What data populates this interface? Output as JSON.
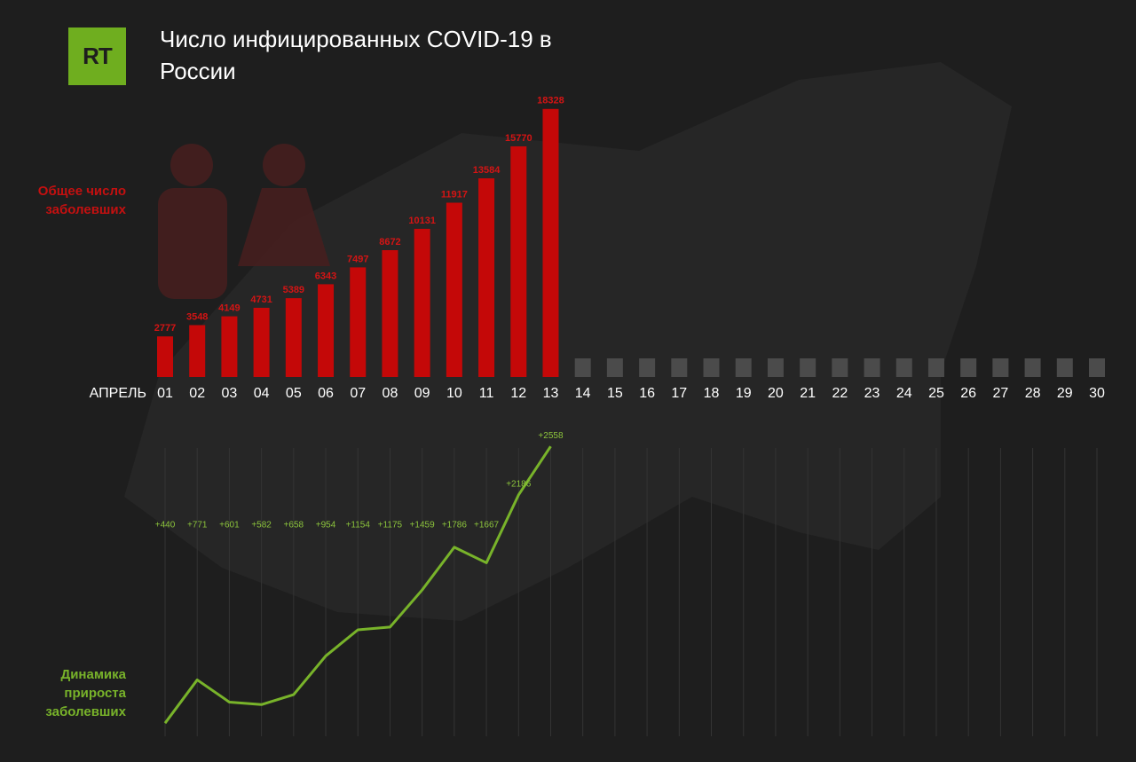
{
  "logo": "RT",
  "title": "Число инфицированных COVID-19 в России",
  "chart_data": [
    {
      "type": "bar",
      "y_label": "Общее число заболевших",
      "x_label": "АПРЕЛЬ",
      "categories": [
        "01",
        "02",
        "03",
        "04",
        "05",
        "06",
        "07",
        "08",
        "09",
        "10",
        "11",
        "12",
        "13",
        "14",
        "15",
        "16",
        "17",
        "18",
        "19",
        "20",
        "21",
        "22",
        "23",
        "24",
        "25",
        "26",
        "27",
        "28",
        "29",
        "30"
      ],
      "values": [
        2777,
        3548,
        4149,
        4731,
        5389,
        6343,
        7497,
        8672,
        10131,
        11917,
        13584,
        15770,
        18328,
        null,
        null,
        null,
        null,
        null,
        null,
        null,
        null,
        null,
        null,
        null,
        null,
        null,
        null,
        null,
        null,
        null
      ],
      "color": "#c40808",
      "ylim": [
        0,
        18800
      ]
    },
    {
      "type": "line",
      "y_label": "Динамика прироста заболевших",
      "values": [
        440,
        771,
        601,
        582,
        658,
        954,
        1154,
        1175,
        1459,
        1786,
        1667,
        2186,
        2558,
        null,
        null,
        null,
        null,
        null,
        null,
        null,
        null,
        null,
        null,
        null,
        null,
        null,
        null,
        null,
        null,
        null
      ],
      "value_labels": [
        "+440",
        "+771",
        "+601",
        "+582",
        "+658",
        "+954",
        "+1154",
        "+1175",
        "+1459",
        "+1786",
        "+1667",
        "+2186",
        "+2558",
        null,
        null,
        null,
        null,
        null,
        null,
        null,
        null,
        null,
        null,
        null,
        null,
        null,
        null,
        null,
        null,
        null
      ],
      "color": "#78b32a",
      "ylim": [
        0,
        2600
      ]
    }
  ]
}
